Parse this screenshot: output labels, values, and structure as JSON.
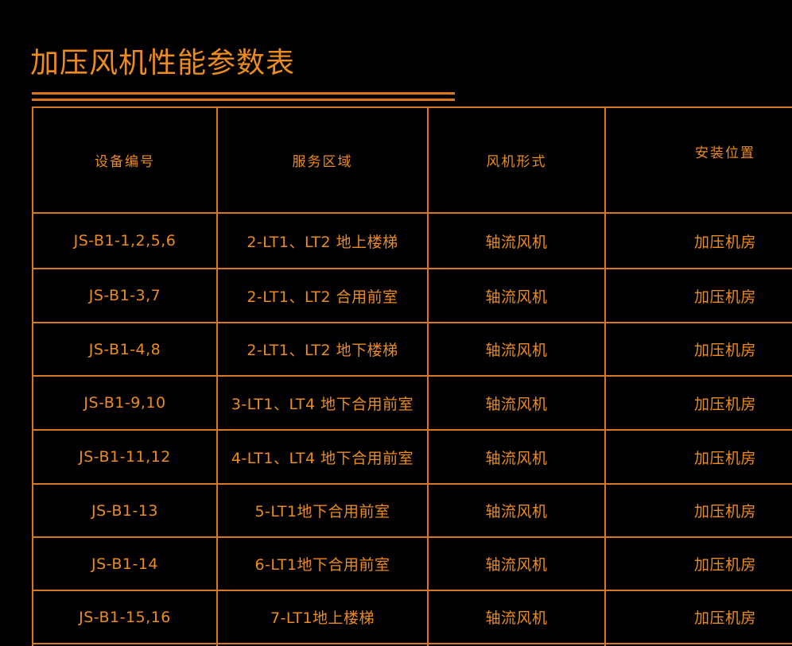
{
  "title": "加压风机性能参数表",
  "colors": {
    "background": "#000000",
    "line_orange": "#d9771c",
    "text_orange": "#ec8c1f"
  },
  "table": {
    "headers": [
      "设备编号",
      "服务区域",
      "风机形式",
      "安装位置"
    ],
    "rows": [
      [
        "JS-B1-1,2,5,6",
        "2-LT1、LT2 地上楼梯",
        "轴流风机",
        "加压机房"
      ],
      [
        "JS-B1-3,7",
        "2-LT1、LT2 合用前室",
        "轴流风机",
        "加压机房"
      ],
      [
        "JS-B1-4,8",
        "2-LT1、LT2 地下楼梯",
        "轴流风机",
        "加压机房"
      ],
      [
        "JS-B1-9,10",
        "3-LT1、LT4 地下合用前室",
        "轴流风机",
        "加压机房"
      ],
      [
        "JS-B1-11,12",
        "4-LT1、LT4 地下合用前室",
        "轴流风机",
        "加压机房"
      ],
      [
        "JS-B1-13",
        "5-LT1地下合用前室",
        "轴流风机",
        "加压机房"
      ],
      [
        "JS-B1-14",
        "6-LT1地下合用前室",
        "轴流风机",
        "加压机房"
      ],
      [
        "JS-B1-15,16",
        "7-LT1地上楼梯",
        "轴流风机",
        "加压机房"
      ]
    ]
  }
}
